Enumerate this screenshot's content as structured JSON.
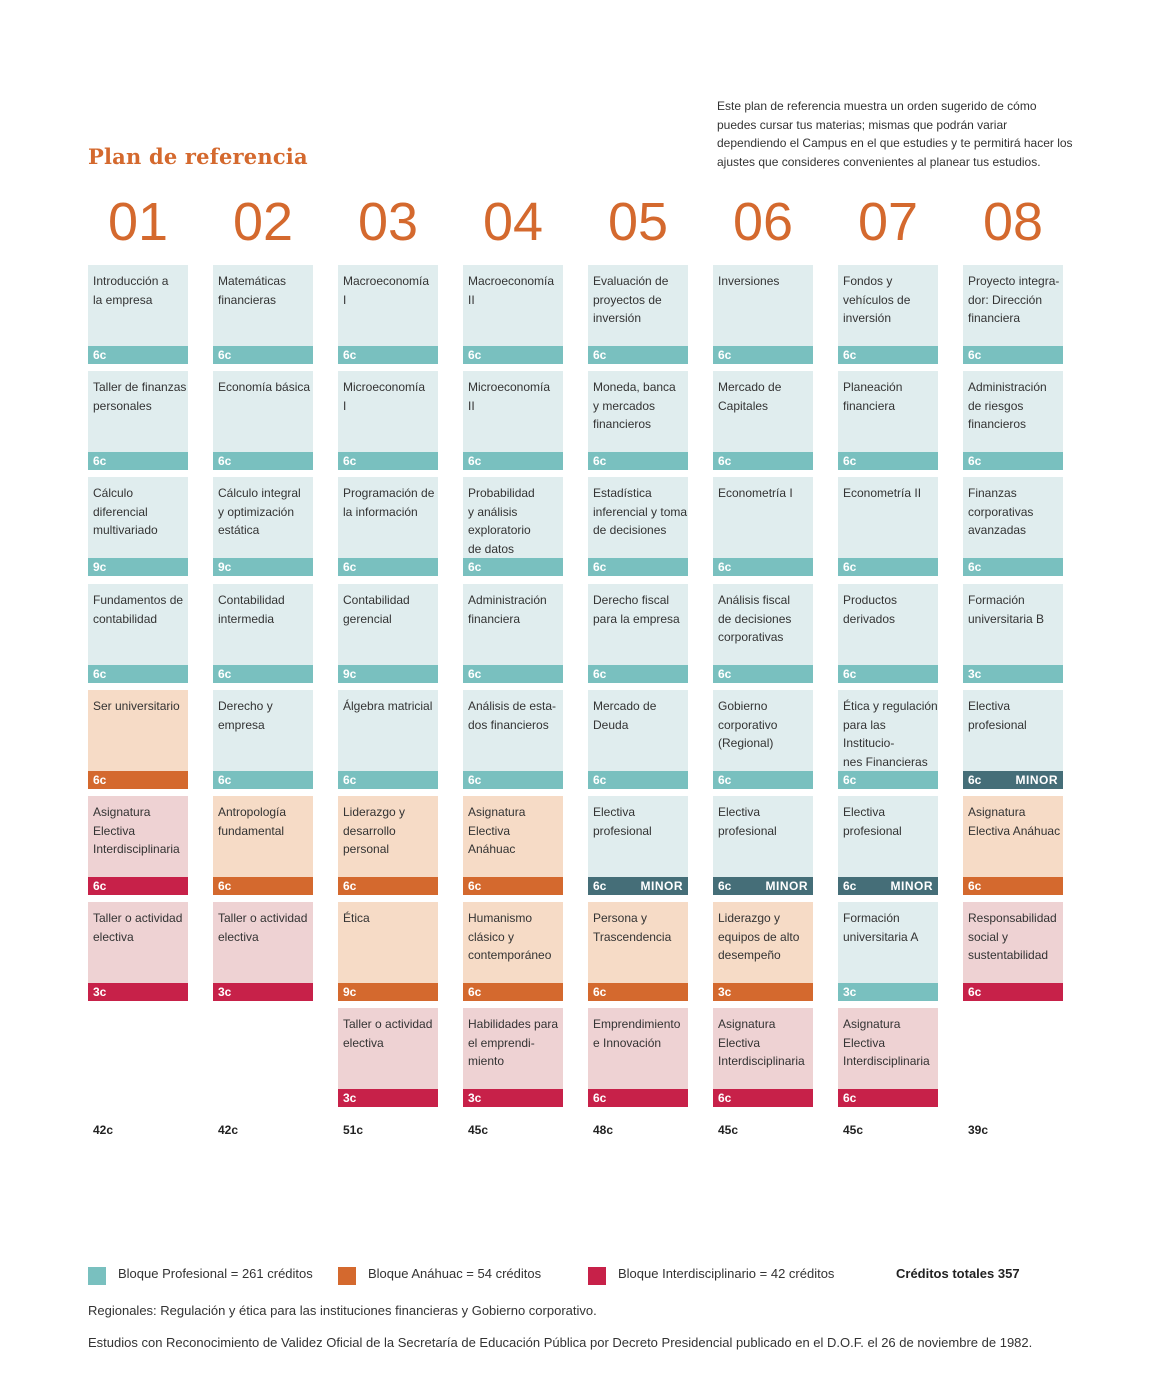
{
  "title": "Plan de referencia",
  "intro": "Este plan de referencia muestra un orden sugerido de cómo puedes cursar tus materias; mismas que podrán variar dependiendo el Campus en el que estudies y te permitirá hacer los ajustes que consideres convenientes al planear tus estudios.",
  "colors": {
    "profesional": "#79c0bf",
    "anahuac": "#d4692e",
    "interdisciplinario": "#c72149",
    "minor": "#456e78"
  },
  "semesters": [
    {
      "number": "01",
      "total": "42c",
      "courses": [
        {
          "name": "Introducción a\nla empresa",
          "credits": "6c",
          "block": "p"
        },
        {
          "name": "Taller de finanzas\npersonales",
          "credits": "6c",
          "block": "p"
        },
        {
          "name": "Cálculo\ndiferencial\nmultivariado",
          "credits": "9c",
          "block": "p"
        },
        {
          "name": "Fundamentos de\ncontabilidad",
          "credits": "6c",
          "block": "p"
        },
        {
          "name": "Ser universitario",
          "credits": "6c",
          "block": "a"
        },
        {
          "name": "Asignatura\nElectiva\nInterdisciplinaria",
          "credits": "6c",
          "block": "i"
        },
        {
          "name": "Taller o actividad\nelectiva",
          "credits": "3c",
          "block": "i"
        }
      ]
    },
    {
      "number": "02",
      "total": "42c",
      "courses": [
        {
          "name": "Matemáticas\nfinancieras",
          "credits": "6c",
          "block": "p"
        },
        {
          "name": "Economía básica",
          "credits": "6c",
          "block": "p"
        },
        {
          "name": "Cálculo integral\ny optimización\nestática",
          "credits": "9c",
          "block": "p"
        },
        {
          "name": "Contabilidad\nintermedia",
          "credits": "6c",
          "block": "p"
        },
        {
          "name": "Derecho y\nempresa",
          "credits": "6c",
          "block": "p"
        },
        {
          "name": "Antropología\nfundamental",
          "credits": "6c",
          "block": "a"
        },
        {
          "name": "Taller o actividad\nelectiva",
          "credits": "3c",
          "block": "i"
        }
      ]
    },
    {
      "number": "03",
      "total": "51c",
      "courses": [
        {
          "name": "Macroeconomía\nI",
          "credits": "6c",
          "block": "p"
        },
        {
          "name": "Microeconomía\nI",
          "credits": "6c",
          "block": "p"
        },
        {
          "name": "Programación de\nla información",
          "credits": "6c",
          "block": "p"
        },
        {
          "name": "Contabilidad\ngerencial",
          "credits": "9c",
          "block": "p"
        },
        {
          "name": "Álgebra matricial",
          "credits": "6c",
          "block": "p"
        },
        {
          "name": "Liderazgo y\ndesarrollo\npersonal",
          "credits": "6c",
          "block": "a"
        },
        {
          "name": "Ética",
          "credits": "9c",
          "block": "a"
        },
        {
          "name": "Taller o actividad\nelectiva",
          "credits": "3c",
          "block": "i"
        }
      ]
    },
    {
      "number": "04",
      "total": "45c",
      "courses": [
        {
          "name": "Macroeconomía\nII",
          "credits": "6c",
          "block": "p"
        },
        {
          "name": "Microeconomía\nII",
          "credits": "6c",
          "block": "p"
        },
        {
          "name": "Probabilidad\ny análisis\nexploratorio\nde datos",
          "credits": "6c",
          "block": "p"
        },
        {
          "name": "Administración\nfinanciera",
          "credits": "6c",
          "block": "p"
        },
        {
          "name": "Análisis de esta-\ndos financieros",
          "credits": "6c",
          "block": "p"
        },
        {
          "name": "Asignatura\nElectiva\nAnáhuac",
          "credits": "6c",
          "block": "a"
        },
        {
          "name": "Humanismo\nclásico y\ncontemporáneo",
          "credits": "6c",
          "block": "a"
        },
        {
          "name": "Habilidades para\nel emprendi-\nmiento",
          "credits": "3c",
          "block": "i"
        }
      ]
    },
    {
      "number": "05",
      "total": "48c",
      "courses": [
        {
          "name": "Evaluación de\nproyectos de\ninversión",
          "credits": "6c",
          "block": "p"
        },
        {
          "name": "Moneda, banca\ny mercados\nfinancieros",
          "credits": "6c",
          "block": "p"
        },
        {
          "name": "Estadística\ninferencial y toma\nde decisiones",
          "credits": "6c",
          "block": "p"
        },
        {
          "name": "Derecho fiscal\npara la empresa",
          "credits": "6c",
          "block": "p"
        },
        {
          "name": "Mercado de\nDeuda",
          "credits": "6c",
          "block": "p"
        },
        {
          "name": "Electiva\nprofesional",
          "credits": "6c",
          "block": "m",
          "minor": "MINOR"
        },
        {
          "name": "Persona y\nTrascendencia",
          "credits": "6c",
          "block": "a"
        },
        {
          "name": "Emprendimiento\ne Innovación",
          "credits": "6c",
          "block": "i"
        }
      ]
    },
    {
      "number": "06",
      "total": "45c",
      "courses": [
        {
          "name": "Inversiones",
          "credits": "6c",
          "block": "p"
        },
        {
          "name": "Mercado de\nCapitales",
          "credits": "6c",
          "block": "p"
        },
        {
          "name": "Econometría I",
          "credits": "6c",
          "block": "p"
        },
        {
          "name": "Análisis fiscal\nde decisiones\ncorporativas",
          "credits": "6c",
          "block": "p"
        },
        {
          "name": "Gobierno\ncorporativo\n(Regional)",
          "credits": "6c",
          "block": "p"
        },
        {
          "name": "Electiva\nprofesional",
          "credits": "6c",
          "block": "m",
          "minor": "MINOR"
        },
        {
          "name": "Liderazgo y\nequipos de alto\ndesempeño",
          "credits": "3c",
          "block": "a"
        },
        {
          "name": "Asignatura\nElectiva\nInterdisciplinaria",
          "credits": "6c",
          "block": "i"
        }
      ]
    },
    {
      "number": "07",
      "total": "45c",
      "courses": [
        {
          "name": "Fondos y\nvehículos de\ninversión",
          "credits": "6c",
          "block": "p"
        },
        {
          "name": "Planeación\nfinanciera",
          "credits": "6c",
          "block": "p"
        },
        {
          "name": "Econometría II",
          "credits": "6c",
          "block": "p"
        },
        {
          "name": "Productos\nderivados",
          "credits": "6c",
          "block": "p"
        },
        {
          "name": "Ética y regulación\npara las Institucio-\nnes Financieras\n(Regional)",
          "credits": "6c",
          "block": "p"
        },
        {
          "name": "Electiva\nprofesional",
          "credits": "6c",
          "block": "m",
          "minor": "MINOR"
        },
        {
          "name": "Formación\nuniversitaria A",
          "credits": "3c",
          "block": "p"
        },
        {
          "name": "Asignatura\nElectiva\nInterdisciplinaria",
          "credits": "6c",
          "block": "i"
        }
      ]
    },
    {
      "number": "08",
      "total": "39c",
      "courses": [
        {
          "name": "Proyecto integra-\ndor: Dirección\nfinanciera",
          "credits": "6c",
          "block": "p"
        },
        {
          "name": "Administración\nde riesgos\nfinancieros",
          "credits": "6c",
          "block": "p"
        },
        {
          "name": "Finanzas\ncorporativas\navanzadas",
          "credits": "6c",
          "block": "p"
        },
        {
          "name": "Formación\nuniversitaria B",
          "credits": "3c",
          "block": "p"
        },
        {
          "name": "Electiva\nprofesional",
          "credits": "6c",
          "block": "m",
          "minor": "MINOR"
        },
        {
          "name": "Asignatura\nElectiva Anáhuac",
          "credits": "6c",
          "block": "a"
        },
        {
          "name": "Responsabilidad\nsocial y\nsustentabilidad",
          "credits": "6c",
          "block": "i"
        }
      ]
    }
  ],
  "legend": {
    "profesional": "Bloque Profesional = 261 créditos",
    "anahuac": "Bloque Anáhuac = 54 créditos",
    "interdisciplinario": "Bloque Interdisciplinario = 42 créditos",
    "total": "Créditos totales 357"
  },
  "notes": {
    "regionales": "Regionales: Regulación y ética para las instituciones financieras y Gobierno corporativo.",
    "rvoe": "Estudios con Reconocimiento de Validez Oficial de la Secretaría de Educación Pública por Decreto Presidencial publicado en el D.O.F. el 26 de noviembre de 1982."
  }
}
